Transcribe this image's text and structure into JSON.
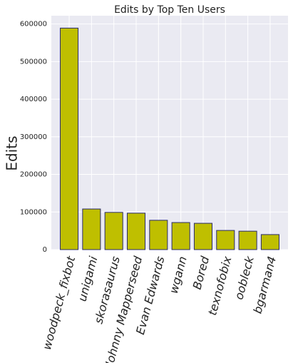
{
  "chart_data": {
    "type": "bar",
    "title": "Edits by Top Ten Users",
    "y_label": "Edits",
    "categories": [
      "woodpeck_fixbot",
      "unigami",
      "skorasaurus",
      "Johnny Mapperseed",
      "Evan Edwards",
      "wgann",
      "Bored",
      "texnofobix",
      "oobleck",
      "bgarman4"
    ],
    "values": [
      589000,
      108000,
      99000,
      97000,
      78000,
      72000,
      70000,
      51000,
      49000,
      40000
    ],
    "color": "#bfbf00",
    "edge_color": "#2b2b6e",
    "ylim": [
      0,
      622000
    ],
    "yticks": [
      0,
      100000,
      200000,
      300000,
      400000,
      500000,
      600000
    ],
    "grid": true
  }
}
